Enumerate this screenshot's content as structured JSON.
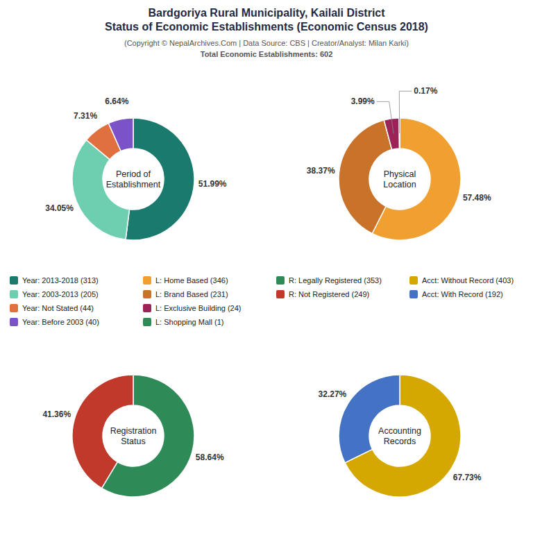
{
  "title": "Bardgoriya Rural Municipality, Kailali District\nStatus of Economic Establishments (Economic Census 2018)",
  "subtitle": "(Copyright © NepalArchives.Com | Data Source: CBS | Creator/Analyst: Milan Karki)\nTotal Economic Establishments: 602",
  "chart_data": [
    {
      "type": "donut",
      "title": "Period of\nEstablishment",
      "categories": [
        "Year: 2013-2018 (313)",
        "Year: 2003-2013 (205)",
        "Year: Not Stated (44)",
        "Year: Before 2003 (40)"
      ],
      "values": [
        51.99,
        34.05,
        7.31,
        6.64
      ],
      "value_labels": [
        "51.99%",
        "34.05%",
        "7.31%",
        "6.64%"
      ],
      "colors": [
        "#1a7a6e",
        "#6dcfb0",
        "#e07040",
        "#7b52c8"
      ],
      "data_labels": true
    },
    {
      "type": "donut",
      "title": "Physical\nLocation",
      "categories": [
        "L: Home Based (346)",
        "L: Brand Based (231)",
        "L: Exclusive Building (24)",
        "L: Shopping Mall (1)"
      ],
      "values": [
        57.48,
        38.37,
        3.99,
        0.17
      ],
      "value_labels": [
        "57.48%",
        "38.37%",
        "3.99%",
        "0.17%"
      ],
      "colors": [
        "#f0a030",
        "#c8722a",
        "#9b2357",
        "#2e8b57"
      ],
      "data_labels": true
    },
    {
      "type": "donut",
      "title": "Registration\nStatus",
      "categories": [
        "R: Legally Registered (353)",
        "R: Not Registered (249)"
      ],
      "values": [
        58.64,
        41.36
      ],
      "value_labels": [
        "58.64%",
        "41.36%"
      ],
      "colors": [
        "#2e8b57",
        "#c0392b"
      ],
      "data_labels": true
    },
    {
      "type": "donut",
      "title": "Accounting\nRecords",
      "categories": [
        "Acct: Without Record (403)",
        "Acct: With Record (192)"
      ],
      "values": [
        67.73,
        32.27
      ],
      "value_labels": [
        "67.73%",
        "32.27%"
      ],
      "colors": [
        "#d4a800",
        "#4472c4"
      ],
      "data_labels": true
    }
  ]
}
